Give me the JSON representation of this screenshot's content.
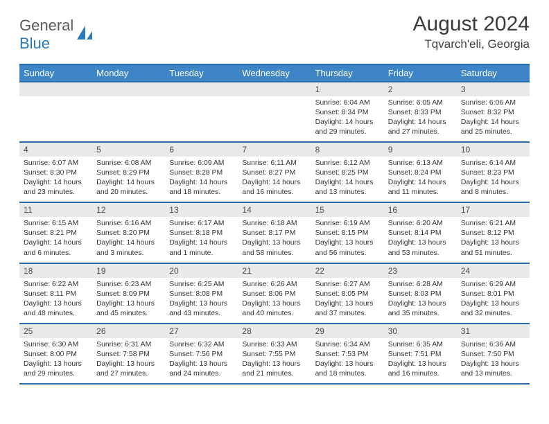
{
  "logo": {
    "text_a": "General",
    "text_b": "Blue"
  },
  "header": {
    "month_title": "August 2024",
    "location": "Tqvarch'eli, Georgia"
  },
  "colors": {
    "header_bg": "#3d85c6",
    "header_border": "#2a6da8",
    "daynum_bg": "#e9e9e9",
    "text": "#333333"
  },
  "weekdays": [
    "Sunday",
    "Monday",
    "Tuesday",
    "Wednesday",
    "Thursday",
    "Friday",
    "Saturday"
  ],
  "weeks": [
    [
      {
        "n": "",
        "sr": "",
        "ss": "",
        "dl": ""
      },
      {
        "n": "",
        "sr": "",
        "ss": "",
        "dl": ""
      },
      {
        "n": "",
        "sr": "",
        "ss": "",
        "dl": ""
      },
      {
        "n": "",
        "sr": "",
        "ss": "",
        "dl": ""
      },
      {
        "n": "1",
        "sr": "Sunrise: 6:04 AM",
        "ss": "Sunset: 8:34 PM",
        "dl": "Daylight: 14 hours and 29 minutes."
      },
      {
        "n": "2",
        "sr": "Sunrise: 6:05 AM",
        "ss": "Sunset: 8:33 PM",
        "dl": "Daylight: 14 hours and 27 minutes."
      },
      {
        "n": "3",
        "sr": "Sunrise: 6:06 AM",
        "ss": "Sunset: 8:32 PM",
        "dl": "Daylight: 14 hours and 25 minutes."
      }
    ],
    [
      {
        "n": "4",
        "sr": "Sunrise: 6:07 AM",
        "ss": "Sunset: 8:30 PM",
        "dl": "Daylight: 14 hours and 23 minutes."
      },
      {
        "n": "5",
        "sr": "Sunrise: 6:08 AM",
        "ss": "Sunset: 8:29 PM",
        "dl": "Daylight: 14 hours and 20 minutes."
      },
      {
        "n": "6",
        "sr": "Sunrise: 6:09 AM",
        "ss": "Sunset: 8:28 PM",
        "dl": "Daylight: 14 hours and 18 minutes."
      },
      {
        "n": "7",
        "sr": "Sunrise: 6:11 AM",
        "ss": "Sunset: 8:27 PM",
        "dl": "Daylight: 14 hours and 16 minutes."
      },
      {
        "n": "8",
        "sr": "Sunrise: 6:12 AM",
        "ss": "Sunset: 8:25 PM",
        "dl": "Daylight: 14 hours and 13 minutes."
      },
      {
        "n": "9",
        "sr": "Sunrise: 6:13 AM",
        "ss": "Sunset: 8:24 PM",
        "dl": "Daylight: 14 hours and 11 minutes."
      },
      {
        "n": "10",
        "sr": "Sunrise: 6:14 AM",
        "ss": "Sunset: 8:23 PM",
        "dl": "Daylight: 14 hours and 8 minutes."
      }
    ],
    [
      {
        "n": "11",
        "sr": "Sunrise: 6:15 AM",
        "ss": "Sunset: 8:21 PM",
        "dl": "Daylight: 14 hours and 6 minutes."
      },
      {
        "n": "12",
        "sr": "Sunrise: 6:16 AM",
        "ss": "Sunset: 8:20 PM",
        "dl": "Daylight: 14 hours and 3 minutes."
      },
      {
        "n": "13",
        "sr": "Sunrise: 6:17 AM",
        "ss": "Sunset: 8:18 PM",
        "dl": "Daylight: 14 hours and 1 minute."
      },
      {
        "n": "14",
        "sr": "Sunrise: 6:18 AM",
        "ss": "Sunset: 8:17 PM",
        "dl": "Daylight: 13 hours and 58 minutes."
      },
      {
        "n": "15",
        "sr": "Sunrise: 6:19 AM",
        "ss": "Sunset: 8:15 PM",
        "dl": "Daylight: 13 hours and 56 minutes."
      },
      {
        "n": "16",
        "sr": "Sunrise: 6:20 AM",
        "ss": "Sunset: 8:14 PM",
        "dl": "Daylight: 13 hours and 53 minutes."
      },
      {
        "n": "17",
        "sr": "Sunrise: 6:21 AM",
        "ss": "Sunset: 8:12 PM",
        "dl": "Daylight: 13 hours and 51 minutes."
      }
    ],
    [
      {
        "n": "18",
        "sr": "Sunrise: 6:22 AM",
        "ss": "Sunset: 8:11 PM",
        "dl": "Daylight: 13 hours and 48 minutes."
      },
      {
        "n": "19",
        "sr": "Sunrise: 6:23 AM",
        "ss": "Sunset: 8:09 PM",
        "dl": "Daylight: 13 hours and 45 minutes."
      },
      {
        "n": "20",
        "sr": "Sunrise: 6:25 AM",
        "ss": "Sunset: 8:08 PM",
        "dl": "Daylight: 13 hours and 43 minutes."
      },
      {
        "n": "21",
        "sr": "Sunrise: 6:26 AM",
        "ss": "Sunset: 8:06 PM",
        "dl": "Daylight: 13 hours and 40 minutes."
      },
      {
        "n": "22",
        "sr": "Sunrise: 6:27 AM",
        "ss": "Sunset: 8:05 PM",
        "dl": "Daylight: 13 hours and 37 minutes."
      },
      {
        "n": "23",
        "sr": "Sunrise: 6:28 AM",
        "ss": "Sunset: 8:03 PM",
        "dl": "Daylight: 13 hours and 35 minutes."
      },
      {
        "n": "24",
        "sr": "Sunrise: 6:29 AM",
        "ss": "Sunset: 8:01 PM",
        "dl": "Daylight: 13 hours and 32 minutes."
      }
    ],
    [
      {
        "n": "25",
        "sr": "Sunrise: 6:30 AM",
        "ss": "Sunset: 8:00 PM",
        "dl": "Daylight: 13 hours and 29 minutes."
      },
      {
        "n": "26",
        "sr": "Sunrise: 6:31 AM",
        "ss": "Sunset: 7:58 PM",
        "dl": "Daylight: 13 hours and 27 minutes."
      },
      {
        "n": "27",
        "sr": "Sunrise: 6:32 AM",
        "ss": "Sunset: 7:56 PM",
        "dl": "Daylight: 13 hours and 24 minutes."
      },
      {
        "n": "28",
        "sr": "Sunrise: 6:33 AM",
        "ss": "Sunset: 7:55 PM",
        "dl": "Daylight: 13 hours and 21 minutes."
      },
      {
        "n": "29",
        "sr": "Sunrise: 6:34 AM",
        "ss": "Sunset: 7:53 PM",
        "dl": "Daylight: 13 hours and 18 minutes."
      },
      {
        "n": "30",
        "sr": "Sunrise: 6:35 AM",
        "ss": "Sunset: 7:51 PM",
        "dl": "Daylight: 13 hours and 16 minutes."
      },
      {
        "n": "31",
        "sr": "Sunrise: 6:36 AM",
        "ss": "Sunset: 7:50 PM",
        "dl": "Daylight: 13 hours and 13 minutes."
      }
    ]
  ]
}
